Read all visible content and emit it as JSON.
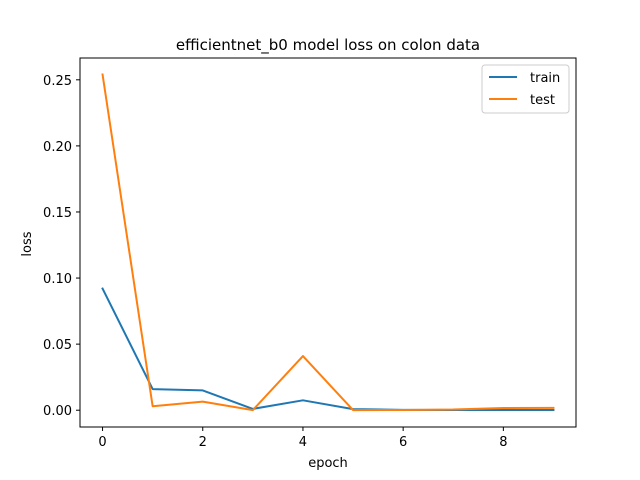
{
  "chart_data": {
    "type": "line",
    "title": "efficientnet_b0 model loss on colon data",
    "xlabel": "epoch",
    "ylabel": "loss",
    "x": [
      0,
      1,
      2,
      3,
      4,
      5,
      6,
      7,
      8,
      9
    ],
    "xlim": [
      -0.45,
      9.45
    ],
    "ylim": [
      -0.0127,
      0.2665
    ],
    "xticks": [
      0,
      2,
      4,
      6,
      8
    ],
    "xtick_labels": [
      "0",
      "2",
      "4",
      "6",
      "8"
    ],
    "yticks": [
      0.0,
      0.05,
      0.1,
      0.15,
      0.2,
      0.25
    ],
    "ytick_labels": [
      "0.00",
      "0.05",
      "0.10",
      "0.15",
      "0.20",
      "0.25"
    ],
    "grid": false,
    "legend_position": "top-right",
    "series": [
      {
        "name": "train",
        "color": "#1f77b4",
        "values": [
          0.092,
          0.016,
          0.015,
          0.001,
          0.0075,
          0.0008,
          0.0003,
          0.0002,
          0.0002,
          0.0002
        ]
      },
      {
        "name": "test",
        "color": "#ff7f0e",
        "values": [
          0.254,
          0.003,
          0.0065,
          0.0001,
          0.041,
          0.0001,
          0.0002,
          0.0005,
          0.0017,
          0.0018
        ]
      }
    ]
  }
}
